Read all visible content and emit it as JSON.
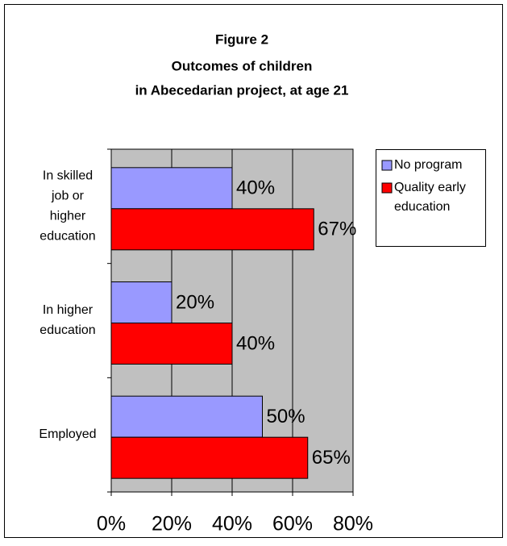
{
  "chart_data": {
    "type": "hbar",
    "title": "Figure 2",
    "subtitle": [
      "Outcomes of children",
      "in Abecedarian project, at age 21"
    ],
    "categories": [
      [
        "In skilled",
        "job or",
        "higher",
        "education"
      ],
      [
        "In higher",
        "education"
      ],
      [
        "Employed"
      ]
    ],
    "series": [
      {
        "name": [
          "No program"
        ],
        "color": "#9999ff",
        "values": [
          40,
          20,
          50
        ],
        "value_labels": [
          "40%",
          "20%",
          "50%"
        ]
      },
      {
        "name": [
          "Quality early",
          "education"
        ],
        "color": "#ff0000",
        "values": [
          67,
          40,
          65
        ],
        "value_labels": [
          "67%",
          "40%",
          "65%"
        ]
      }
    ],
    "xlim": [
      0,
      80
    ],
    "xticks": [
      {
        "value": 0,
        "label": "0%"
      },
      {
        "value": 20,
        "label": "20%"
      },
      {
        "value": 40,
        "label": "40%"
      },
      {
        "value": 60,
        "label": "60%"
      },
      {
        "value": 80,
        "label": "80%"
      }
    ],
    "grid": true,
    "plot_background": "#c0c0c0",
    "legend": "right"
  }
}
